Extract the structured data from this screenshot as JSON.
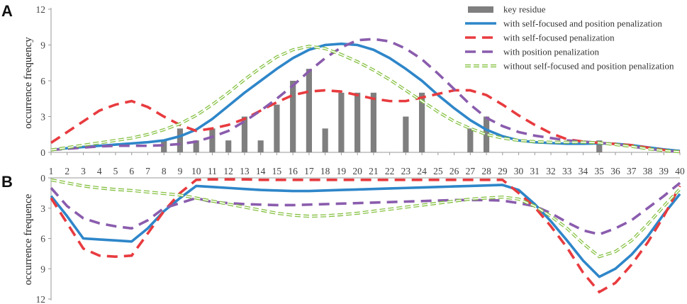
{
  "colors": {
    "key_residue": "#7f7f7f",
    "with_self_focused_and_position": "#2e86c9",
    "with_self_focused": "#e83b3f",
    "with_position": "#8a5cad",
    "without_both": "#86c143",
    "axis": "#9a9a9a",
    "tick_text": "#444444"
  },
  "chart_data": [
    {
      "panel": "A",
      "type": "bar+line",
      "ylabel": "occurrence frequency",
      "ylim": [
        0,
        12
      ],
      "yticks": [
        0,
        3,
        6,
        9,
        12
      ],
      "x": [
        1,
        2,
        3,
        4,
        5,
        6,
        7,
        8,
        9,
        10,
        11,
        12,
        13,
        14,
        15,
        16,
        17,
        18,
        19,
        20,
        21,
        22,
        23,
        24,
        25,
        26,
        27,
        28,
        29,
        30,
        31,
        32,
        33,
        34,
        35,
        36,
        37,
        38,
        39,
        40
      ],
      "bars": {
        "name": "key residue",
        "values": [
          0,
          0,
          0,
          0,
          0,
          0,
          0,
          1,
          2,
          1,
          2,
          1,
          3,
          1,
          4,
          6,
          7,
          2,
          5,
          5,
          5,
          0,
          3,
          5,
          0,
          0,
          2,
          3,
          0,
          0,
          0,
          0,
          0,
          0,
          1,
          0,
          0,
          0,
          0,
          0
        ]
      },
      "series": [
        {
          "name": "with self-focused and position penalization",
          "style": "solid",
          "values": [
            0.2,
            0.35,
            0.45,
            0.55,
            0.65,
            0.75,
            0.85,
            1.0,
            1.35,
            1.9,
            2.8,
            3.9,
            5.0,
            6.0,
            7.0,
            7.9,
            8.6,
            9.0,
            9.1,
            9.0,
            8.6,
            7.9,
            7.0,
            6.0,
            4.8,
            3.7,
            2.7,
            1.9,
            1.35,
            1.0,
            0.85,
            0.78,
            0.72,
            0.72,
            0.75,
            0.72,
            0.6,
            0.42,
            0.25,
            0.12
          ]
        },
        {
          "name": "with self-focused penalization",
          "style": "dashed",
          "values": [
            0.8,
            1.7,
            2.6,
            3.5,
            4.0,
            4.3,
            3.8,
            3.0,
            2.3,
            1.8,
            2.0,
            2.3,
            2.8,
            3.5,
            4.2,
            4.8,
            5.1,
            5.2,
            5.1,
            4.8,
            4.5,
            4.3,
            4.3,
            4.6,
            4.9,
            5.2,
            5.2,
            4.8,
            4.0,
            3.1,
            2.3,
            1.6,
            1.1,
            0.9,
            0.8,
            0.7,
            0.6,
            0.4,
            0.2,
            0.05
          ]
        },
        {
          "name": "with position penalization",
          "style": "dashed",
          "values": [
            0.2,
            0.3,
            0.4,
            0.5,
            0.55,
            0.55,
            0.55,
            0.6,
            0.7,
            0.9,
            1.3,
            1.8,
            2.6,
            3.5,
            4.5,
            5.6,
            6.8,
            7.9,
            8.8,
            9.4,
            9.5,
            9.3,
            8.7,
            7.8,
            6.6,
            5.3,
            4.0,
            2.9,
            2.2,
            1.7,
            1.4,
            1.2,
            1.0,
            0.9,
            0.8,
            0.7,
            0.5,
            0.3,
            0.15,
            0.05
          ]
        },
        {
          "name": "without self-focused and position penalization",
          "style": "double-dashed",
          "values": [
            0.2,
            0.4,
            0.6,
            0.8,
            1.0,
            1.2,
            1.5,
            1.9,
            2.4,
            3.1,
            4.0,
            5.0,
            6.1,
            7.1,
            8.0,
            8.6,
            8.9,
            8.7,
            8.2,
            7.6,
            6.9,
            6.1,
            5.2,
            4.3,
            3.4,
            2.6,
            2.0,
            1.5,
            1.2,
            1.0,
            0.9,
            0.85,
            0.85,
            0.85,
            0.8,
            0.65,
            0.5,
            0.3,
            0.15,
            0.05
          ]
        }
      ],
      "legend_position": "top-right"
    },
    {
      "panel": "B",
      "type": "line",
      "ylabel": "occurrence frequence",
      "ylim": [
        0,
        12
      ],
      "yticks": [
        0,
        3,
        6,
        9,
        12
      ],
      "y_inverted": true,
      "x": [
        1,
        2,
        3,
        4,
        5,
        6,
        7,
        8,
        9,
        10,
        11,
        12,
        13,
        14,
        15,
        16,
        17,
        18,
        19,
        20,
        21,
        22,
        23,
        24,
        25,
        26,
        27,
        28,
        29,
        30,
        31,
        32,
        33,
        34,
        35,
        36,
        37,
        38,
        39,
        40
      ],
      "series": [
        {
          "name": "with self-focused and position penalization",
          "style": "solid",
          "values": [
            1.8,
            3.8,
            6.0,
            6.1,
            6.2,
            6.3,
            5.0,
            3.3,
            2.0,
            0.8,
            0.9,
            1.0,
            1.1,
            1.2,
            1.25,
            1.3,
            1.3,
            1.25,
            1.2,
            1.15,
            1.1,
            1.05,
            1.0,
            0.95,
            0.9,
            0.85,
            0.8,
            0.75,
            0.7,
            1.2,
            2.6,
            4.3,
            6.2,
            8.2,
            9.8,
            9.0,
            7.6,
            5.8,
            3.6,
            1.6
          ]
        },
        {
          "name": "with self-focused penalization",
          "style": "dashed",
          "values": [
            2.0,
            4.5,
            7.0,
            7.7,
            7.8,
            7.7,
            5.5,
            3.3,
            1.5,
            0.2,
            0.15,
            0.15,
            0.15,
            0.2,
            0.2,
            0.2,
            0.2,
            0.2,
            0.2,
            0.2,
            0.2,
            0.2,
            0.2,
            0.2,
            0.2,
            0.2,
            0.2,
            0.2,
            0.2,
            1.5,
            2.9,
            4.8,
            6.9,
            9.4,
            11.3,
            10.4,
            8.6,
            6.4,
            3.8,
            0.8
          ]
        },
        {
          "name": "with position penalization",
          "style": "dashed",
          "values": [
            1.0,
            2.8,
            4.0,
            4.5,
            4.8,
            5.0,
            4.2,
            3.0,
            2.5,
            2.0,
            2.4,
            2.5,
            2.6,
            2.65,
            2.7,
            2.7,
            2.65,
            2.6,
            2.55,
            2.5,
            2.45,
            2.4,
            2.35,
            2.3,
            2.25,
            2.2,
            2.2,
            2.2,
            2.25,
            2.5,
            2.8,
            3.5,
            4.4,
            5.2,
            5.6,
            5.0,
            4.2,
            3.0,
            1.8,
            0.5
          ]
        },
        {
          "name": "without self-focused and position penalization",
          "style": "double-dashed",
          "values": [
            0.2,
            0.5,
            0.8,
            1.0,
            1.15,
            1.25,
            1.4,
            1.55,
            1.7,
            2.0,
            2.3,
            2.6,
            2.9,
            3.2,
            3.5,
            3.7,
            3.8,
            3.75,
            3.65,
            3.5,
            3.3,
            3.1,
            2.9,
            2.7,
            2.5,
            2.3,
            2.1,
            2.0,
            1.9,
            2.1,
            2.8,
            3.8,
            5.0,
            6.5,
            7.8,
            7.3,
            6.2,
            4.6,
            2.8,
            1.1
          ]
        }
      ]
    }
  ],
  "ui": {
    "panel_a_label": "A",
    "panel_b_label": "B"
  }
}
